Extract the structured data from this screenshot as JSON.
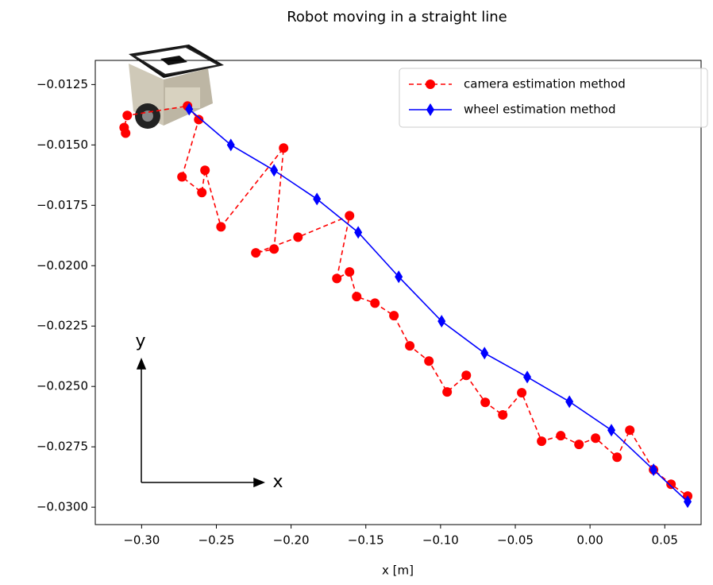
{
  "chart_data": {
    "type": "line",
    "title": "Robot moving in a straight line",
    "x_label": "x [m]",
    "axis_arrow_labels": [
      "y",
      "x"
    ],
    "xlim": [
      -0.331,
      0.0743
    ],
    "ylim": [
      -0.03072,
      -0.0115
    ],
    "xticks": [
      {
        "value": -0.3,
        "label": "−0.30"
      },
      {
        "value": -0.25,
        "label": "−0.25"
      },
      {
        "value": -0.2,
        "label": "−0.20"
      },
      {
        "value": -0.15,
        "label": "−0.15"
      },
      {
        "value": -0.1,
        "label": "−0.10"
      },
      {
        "value": -0.05,
        "label": "−0.05"
      },
      {
        "value": 0,
        "label": "0.00"
      },
      {
        "value": 0.05,
        "label": "0.05"
      }
    ],
    "yticks": [
      {
        "value": -0.0125,
        "label": "−0.0125"
      },
      {
        "value": -0.015,
        "label": "−0.0150"
      },
      {
        "value": -0.0175,
        "label": "−0.0175"
      },
      {
        "value": -0.02,
        "label": "−0.0200"
      },
      {
        "value": -0.0225,
        "label": "−0.0225"
      },
      {
        "value": -0.025,
        "label": "−0.0250"
      },
      {
        "value": -0.0275,
        "label": "−0.0275"
      },
      {
        "value": -0.03,
        "label": "−0.0300"
      }
    ],
    "legend": "upper right",
    "series": [
      {
        "name": "camera estimation method",
        "color": "#ff0000",
        "marker": "circle",
        "dashed": true,
        "x": [
          -0.3107,
          -0.3117,
          -0.3096,
          -0.2693,
          -0.2618,
          -0.273,
          -0.2597,
          -0.2576,
          -0.2469,
          -0.205,
          -0.2114,
          -0.2236,
          -0.1954,
          -0.1609,
          -0.1694,
          -0.1609,
          -0.1561,
          -0.1439,
          -0.1312,
          -0.1206,
          -0.1078,
          -0.0956,
          -0.0828,
          -0.0701,
          -0.0584,
          -0.0457,
          -0.0324,
          -0.0196,
          -0.0074,
          0.0037,
          0.0181,
          0.0266,
          0.0425,
          0.0542,
          0.0653
        ],
        "values": [
          -0.01451,
          -0.01428,
          -0.01378,
          -0.01339,
          -0.01395,
          -0.01632,
          -0.01697,
          -0.01605,
          -0.01839,
          -0.01513,
          -0.01931,
          -0.01947,
          -0.01882,
          -0.01793,
          -0.02053,
          -0.02026,
          -0.02128,
          -0.02155,
          -0.02207,
          -0.02332,
          -0.02395,
          -0.02523,
          -0.02454,
          -0.02566,
          -0.02618,
          -0.02526,
          -0.02727,
          -0.02704,
          -0.0274,
          -0.02714,
          -0.02793,
          -0.02681,
          -0.02845,
          -0.02905,
          -0.02954
        ]
      },
      {
        "name": "wheel estimation method",
        "color": "#0000ff",
        "marker": "diamond",
        "dashed": false,
        "x": [
          -0.2682,
          -0.2403,
          -0.2114,
          -0.1827,
          -0.1551,
          -0.128,
          -0.0993,
          -0.0706,
          -0.042,
          -0.0138,
          0.0143,
          0.0425,
          0.0653
        ],
        "values": [
          -0.01352,
          -0.015,
          -0.01605,
          -0.01724,
          -0.01862,
          -0.02046,
          -0.0223,
          -0.02362,
          -0.02461,
          -0.02563,
          -0.02681,
          -0.02845,
          -0.02977
        ]
      }
    ]
  }
}
